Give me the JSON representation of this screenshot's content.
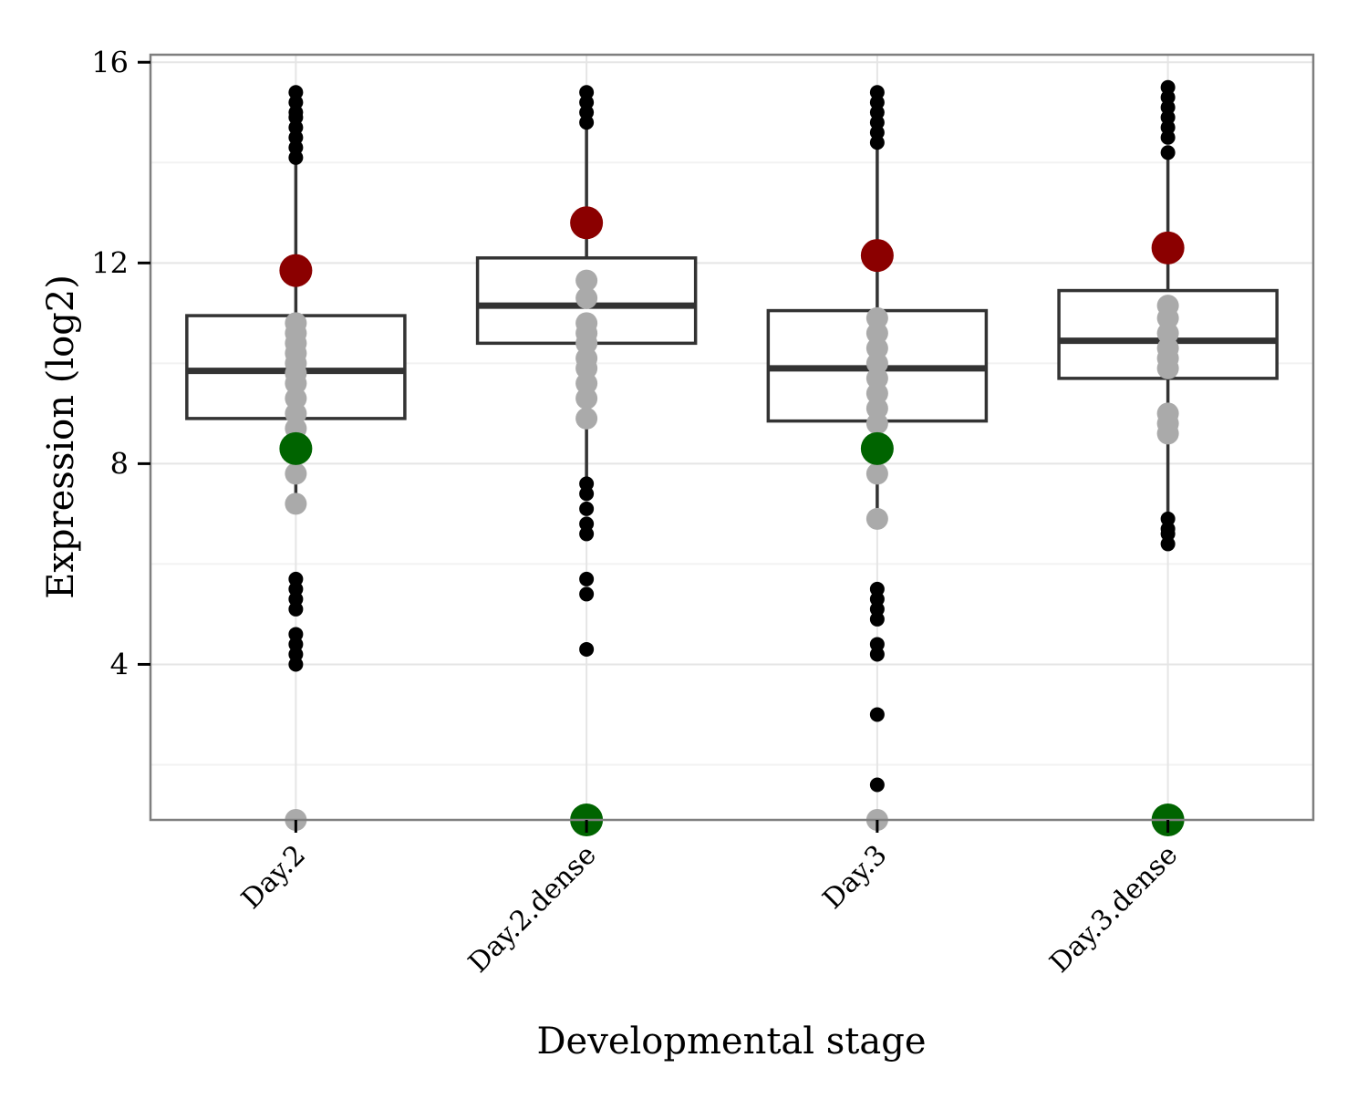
{
  "chart_data": {
    "type": "box",
    "xlabel": "Developmental stage",
    "ylabel": "Expression (log2)",
    "categories": [
      "Day.2",
      "Day.2.dense",
      "Day.3",
      "Day.3.dense"
    ],
    "ylim": [
      0.9,
      16.15
    ],
    "y_ticks": [
      4,
      8,
      12,
      16
    ],
    "grid": true,
    "boxes": [
      {
        "category": "Day.2",
        "q1": 8.9,
        "median": 9.85,
        "q3": 10.95,
        "whisker_low": 7.2,
        "whisker_high": 14.0,
        "outliers": [
          14.1,
          14.3,
          14.5,
          14.7,
          14.9,
          15.0,
          15.2,
          15.4,
          5.7,
          5.5,
          5.3,
          5.1,
          4.6,
          4.4,
          4.2,
          4.0
        ],
        "gray_points": [
          10.8,
          10.6,
          10.4,
          10.2,
          10.0,
          9.8,
          9.6,
          9.3,
          9.0,
          8.7,
          7.8,
          7.2,
          0.9
        ],
        "red_point": 11.85,
        "green_points": [
          8.3
        ]
      },
      {
        "category": "Day.2.dense",
        "q1": 10.4,
        "median": 11.15,
        "q3": 12.1,
        "whisker_low": 7.7,
        "whisker_high": 14.7,
        "outliers": [
          14.8,
          15.0,
          15.2,
          15.4,
          7.6,
          7.4,
          7.1,
          6.8,
          6.6,
          5.7,
          5.4,
          4.3
        ],
        "gray_points": [
          11.65,
          11.3,
          10.8,
          10.6,
          10.4,
          10.1,
          9.9,
          9.6,
          9.3,
          8.9
        ],
        "red_point": 12.8,
        "green_points": [
          0.9
        ]
      },
      {
        "category": "Day.3",
        "q1": 8.85,
        "median": 9.9,
        "q3": 11.05,
        "whisker_low": 6.9,
        "whisker_high": 14.3,
        "outliers": [
          14.4,
          14.6,
          14.8,
          15.0,
          15.2,
          15.4,
          5.5,
          5.3,
          5.1,
          4.9,
          4.4,
          4.2,
          3.0,
          1.6
        ],
        "gray_points": [
          10.9,
          10.6,
          10.3,
          10.0,
          9.7,
          9.4,
          9.1,
          8.8,
          7.8,
          6.9,
          0.9
        ],
        "red_point": 12.15,
        "green_points": [
          8.3
        ]
      },
      {
        "category": "Day.3.dense",
        "q1": 9.7,
        "median": 10.45,
        "q3": 11.45,
        "whisker_low": 7.0,
        "whisker_high": 14.1,
        "outliers": [
          14.2,
          14.5,
          14.7,
          14.9,
          15.1,
          15.3,
          15.5,
          6.9,
          6.7,
          6.6,
          6.4
        ],
        "gray_points": [
          11.15,
          10.9,
          10.6,
          10.3,
          10.1,
          9.9,
          9.0,
          8.8,
          8.6
        ],
        "red_point": 12.3,
        "green_points": [
          0.9
        ]
      }
    ],
    "colors": {
      "box_stroke": "#333333",
      "outlier": "#000000",
      "gray_point": "#aaaaaa",
      "red_point": "#8b0000",
      "green_point": "#006400",
      "grid_major": "#e5e5e5",
      "grid_minor": "#f2f2f2",
      "panel_border": "#7f7f7f",
      "background": "#ffffff"
    }
  }
}
